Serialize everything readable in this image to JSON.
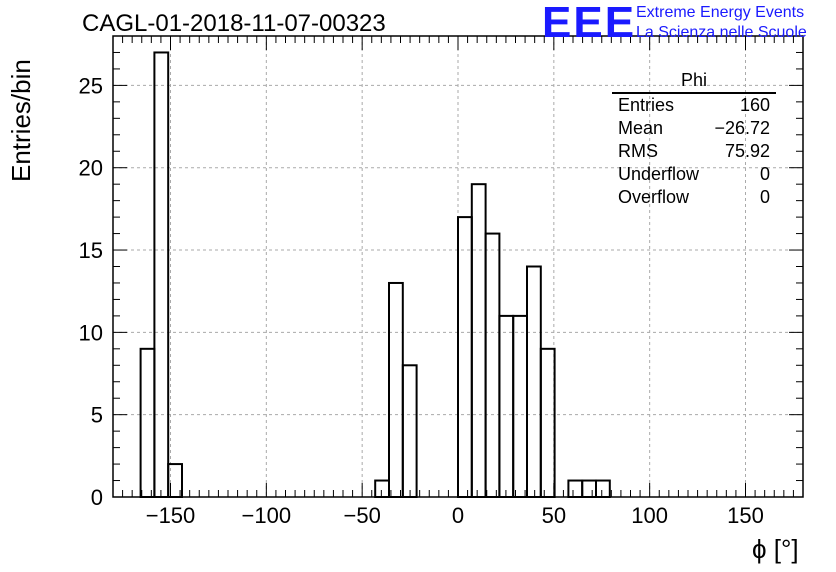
{
  "header": {
    "title": "CAGL-01-2018-11-07-00323",
    "logo_mark": "EEE",
    "logo_line1": "Extreme Energy Events",
    "logo_line2": "La Scienza nelle Scuole"
  },
  "stats_box": {
    "title": "Phi",
    "rows": [
      {
        "label": "Entries",
        "value": "160"
      },
      {
        "label": "Mean",
        "value": "−26.72"
      },
      {
        "label": "RMS",
        "value": "75.92"
      },
      {
        "label": "Underflow",
        "value": "0"
      },
      {
        "label": "Overflow",
        "value": "0"
      }
    ]
  },
  "colors": {
    "logo": "#1a1aff",
    "line": "#000000",
    "grid": "#aaaaaa"
  },
  "chart_data": {
    "type": "histogram",
    "title": "CAGL-01-2018-11-07-00323",
    "xlabel": "ϕ [°]",
    "ylabel": "Entries/bin",
    "xlim": [
      -180,
      180
    ],
    "ylim": [
      0,
      28
    ],
    "grid": true,
    "bin_width": 7.2,
    "x_ticks": [
      -150,
      -100,
      -50,
      0,
      50,
      100,
      150
    ],
    "x_tick_labels": [
      "−150",
      "−100",
      "−50",
      "0",
      "50",
      "100",
      "150"
    ],
    "y_ticks": [
      0,
      5,
      10,
      15,
      20,
      25
    ],
    "y_tick_labels": [
      "0",
      "5",
      "10",
      "15",
      "20",
      "25"
    ],
    "bins": [
      {
        "x_low": -165.6,
        "count": 9
      },
      {
        "x_low": -158.4,
        "count": 27
      },
      {
        "x_low": -151.2,
        "count": 2
      },
      {
        "x_low": -43.2,
        "count": 1
      },
      {
        "x_low": -36.0,
        "count": 13
      },
      {
        "x_low": -28.8,
        "count": 8
      },
      {
        "x_low": 0.0,
        "count": 17
      },
      {
        "x_low": 7.2,
        "count": 19
      },
      {
        "x_low": 14.4,
        "count": 16
      },
      {
        "x_low": 21.6,
        "count": 11
      },
      {
        "x_low": 28.8,
        "count": 11
      },
      {
        "x_low": 36.0,
        "count": 14
      },
      {
        "x_low": 43.2,
        "count": 9
      },
      {
        "x_low": 57.6,
        "count": 1
      },
      {
        "x_low": 64.8,
        "count": 1
      },
      {
        "x_low": 72.0,
        "count": 1
      }
    ]
  }
}
